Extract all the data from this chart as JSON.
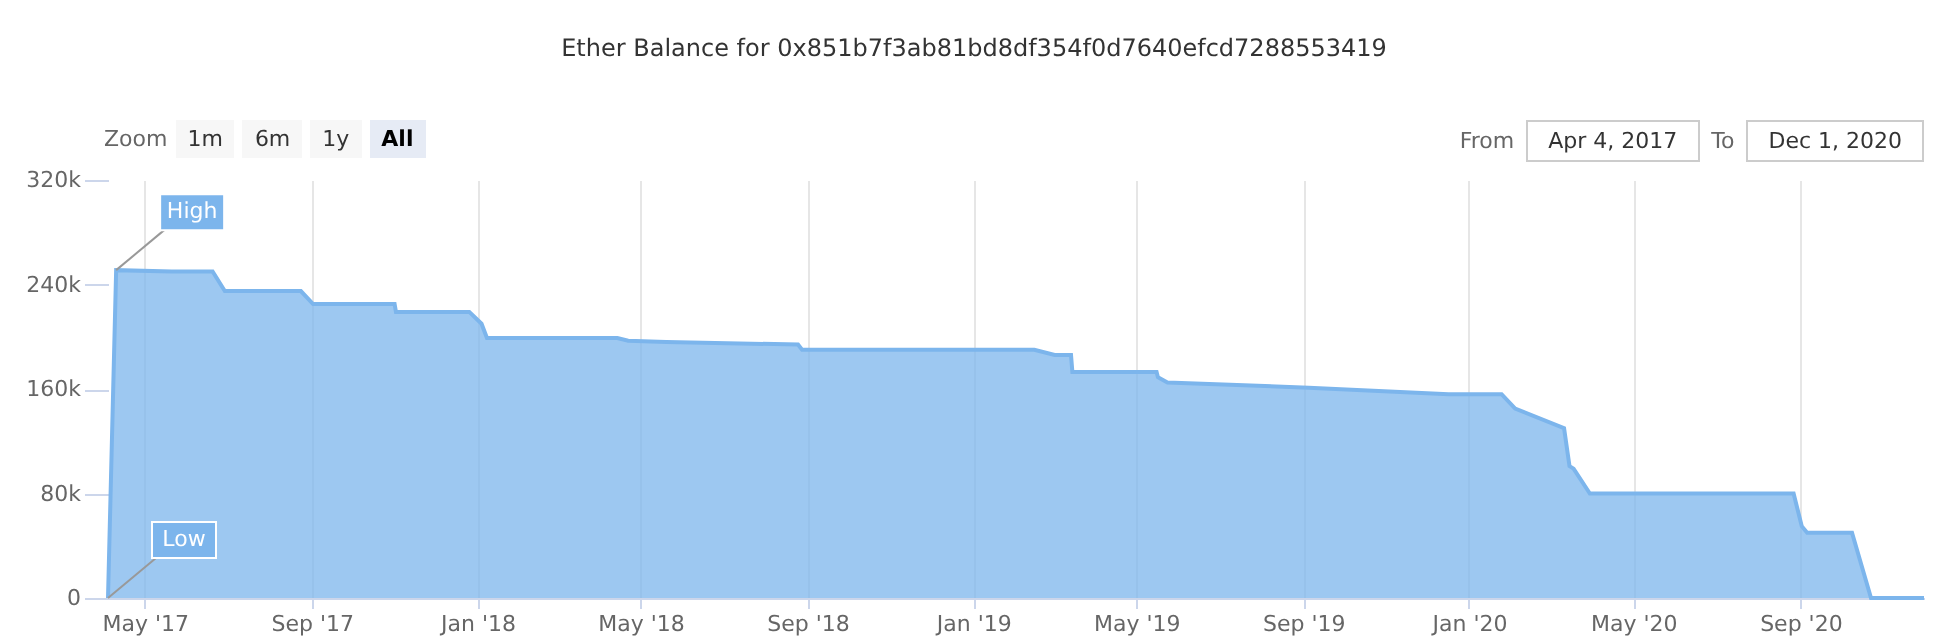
{
  "chart_data": {
    "type": "area",
    "title": "Ether Balance for 0x851b7f3ab81bd8df354f0d7640efcd7288553419",
    "x": [
      "2017-04-04",
      "2017-04-10",
      "2017-05-21",
      "2017-06-20",
      "2017-06-29",
      "2017-08-24",
      "2017-09-02",
      "2017-11-01",
      "2017-11-02",
      "2017-12-26",
      "2018-01-04",
      "2018-01-08",
      "2018-04-14",
      "2018-04-22",
      "2018-05-20",
      "2018-08-25",
      "2018-08-28",
      "2019-02-15",
      "2019-03-02",
      "2019-03-14",
      "2019-03-15",
      "2019-05-16",
      "2019-05-17",
      "2019-05-24",
      "2019-09-05",
      "2019-12-17",
      "2020-01-25",
      "2020-02-04",
      "2020-03-11",
      "2020-03-15",
      "2020-03-18",
      "2020-03-30",
      "2020-08-27",
      "2020-09-02",
      "2020-09-06",
      "2020-10-09",
      "2020-10-23",
      "2020-12-01"
    ],
    "series": [
      {
        "color": "#7cb5ec",
        "values": [
          0,
          251000,
          250000,
          250000,
          235000,
          235000,
          225000,
          225000,
          219000,
          219000,
          210000,
          199000,
          199000,
          197000,
          196000,
          194000,
          190000,
          190000,
          186000,
          186000,
          173000,
          173000,
          169000,
          165000,
          161000,
          156000,
          156000,
          145000,
          130000,
          101000,
          99000,
          80000,
          80000,
          55000,
          50000,
          50000,
          0,
          0
        ]
      }
    ],
    "xlim": [
      "2017-04-04",
      "2020-12-01"
    ],
    "xticks": [
      {
        "value": "2017-05-01",
        "label": "May '17"
      },
      {
        "value": "2017-09-01",
        "label": "Sep '17"
      },
      {
        "value": "2018-01-01",
        "label": "Jan '18"
      },
      {
        "value": "2018-05-01",
        "label": "May '18"
      },
      {
        "value": "2018-09-01",
        "label": "Sep '18"
      },
      {
        "value": "2019-01-01",
        "label": "Jan '19"
      },
      {
        "value": "2019-05-01",
        "label": "May '19"
      },
      {
        "value": "2019-09-01",
        "label": "Sep '19"
      },
      {
        "value": "2020-01-01",
        "label": "Jan '20"
      },
      {
        "value": "2020-05-01",
        "label": "May '20"
      },
      {
        "value": "2020-09-01",
        "label": "Sep '20"
      }
    ],
    "ylim": [
      0,
      320000
    ],
    "yticks": [
      0,
      {
        "value": 80000,
        "label": "80k"
      },
      {
        "value": 160000,
        "label": "160k"
      },
      {
        "value": 240000,
        "label": "240k"
      },
      {
        "value": 320000,
        "label": "320k"
      }
    ],
    "grid": "x",
    "annotations": [
      {
        "text": "High",
        "x": "2017-04-10",
        "y": 251000
      },
      {
        "text": "Low",
        "x": "2017-04-04",
        "y": 0
      },
      "Zoom",
      "1m",
      "6m",
      "1y",
      "All",
      "From",
      "Apr 4, 2017",
      "To",
      "Dec 1, 2020"
    ]
  }
}
